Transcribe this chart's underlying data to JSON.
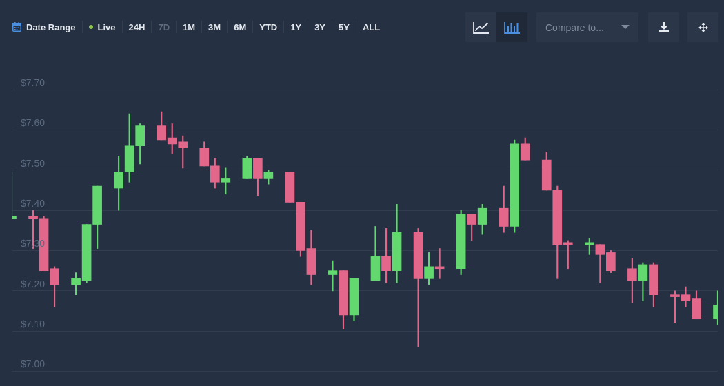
{
  "chart_data": {
    "type": "candlestick",
    "categories": [
      null,
      null,
      null,
      null,
      null,
      null,
      null,
      null,
      null,
      null,
      null,
      null,
      null,
      null,
      null,
      null,
      null,
      null,
      null,
      null,
      null,
      null,
      null,
      null,
      null,
      null,
      null,
      null,
      null,
      null,
      null,
      null,
      null,
      null,
      null,
      null,
      null,
      null,
      null,
      null,
      null,
      null,
      null,
      null,
      null,
      null,
      null,
      null,
      null,
      null,
      null,
      null,
      null,
      null,
      null,
      null,
      null,
      null,
      null,
      null,
      null,
      null,
      null,
      null,
      null,
      null,
      null
    ],
    "ohlc": [
      [
        7.38,
        7.495,
        7.38,
        7.385
      ],
      null,
      [
        7.385,
        7.4,
        7.305,
        7.38
      ],
      [
        7.38,
        7.385,
        7.25,
        7.25
      ],
      [
        7.255,
        7.26,
        7.16,
        7.215
      ],
      null,
      [
        7.215,
        7.245,
        7.19,
        7.23
      ],
      [
        7.225,
        7.365,
        7.22,
        7.365
      ],
      [
        7.365,
        7.46,
        7.305,
        7.46
      ],
      null,
      [
        7.455,
        7.535,
        7.4,
        7.495
      ],
      [
        7.495,
        7.64,
        7.47,
        7.56
      ],
      [
        7.56,
        7.615,
        7.515,
        7.61
      ],
      null,
      [
        7.61,
        7.645,
        7.575,
        7.575
      ],
      [
        7.58,
        7.615,
        7.54,
        7.565
      ],
      [
        7.57,
        7.585,
        7.505,
        7.555
      ],
      null,
      [
        7.555,
        7.57,
        7.51,
        7.51
      ],
      [
        7.51,
        7.53,
        7.455,
        7.47
      ],
      [
        7.47,
        7.505,
        7.44,
        7.48
      ],
      null,
      [
        7.48,
        7.535,
        7.48,
        7.53
      ],
      [
        7.53,
        7.53,
        7.435,
        7.48
      ],
      [
        7.48,
        7.5,
        7.465,
        7.495
      ],
      null,
      [
        7.495,
        7.495,
        7.42,
        7.42
      ],
      [
        7.42,
        7.42,
        7.285,
        7.3
      ],
      [
        7.305,
        7.35,
        7.215,
        7.24
      ],
      null,
      [
        7.24,
        7.275,
        7.2,
        7.25
      ],
      [
        7.25,
        7.25,
        7.105,
        7.14
      ],
      [
        7.14,
        7.23,
        7.125,
        7.23
      ],
      null,
      [
        7.225,
        7.36,
        7.225,
        7.285
      ],
      [
        7.285,
        7.355,
        7.22,
        7.25
      ],
      [
        7.25,
        7.415,
        7.22,
        7.345
      ],
      null,
      [
        7.345,
        7.355,
        7.06,
        7.23
      ],
      [
        7.23,
        7.295,
        7.215,
        7.26
      ],
      [
        7.26,
        7.305,
        7.23,
        7.255
      ],
      null,
      [
        7.255,
        7.4,
        7.24,
        7.39
      ],
      [
        7.39,
        7.39,
        7.325,
        7.365
      ],
      [
        7.365,
        7.415,
        7.34,
        7.405
      ],
      null,
      [
        7.405,
        7.46,
        7.345,
        7.36
      ],
      [
        7.36,
        7.575,
        7.345,
        7.565
      ],
      [
        7.565,
        7.58,
        7.525,
        7.525
      ],
      null,
      [
        7.525,
        7.545,
        7.45,
        7.45
      ],
      [
        7.45,
        7.46,
        7.23,
        7.315
      ],
      [
        7.32,
        7.325,
        7.255,
        7.315
      ],
      null,
      [
        7.315,
        7.33,
        7.29,
        7.32
      ],
      [
        7.315,
        7.315,
        7.22,
        7.29
      ],
      [
        7.295,
        7.3,
        7.245,
        7.25
      ],
      null,
      [
        7.255,
        7.28,
        7.17,
        7.225
      ],
      [
        7.225,
        7.27,
        7.175,
        7.265
      ],
      [
        7.265,
        7.27,
        7.16,
        7.19
      ],
      null,
      [
        7.19,
        7.2,
        7.12,
        7.185
      ],
      [
        7.19,
        7.21,
        7.16,
        7.175
      ],
      [
        7.18,
        7.2,
        7.13,
        7.13
      ],
      null,
      [
        7.13,
        7.2,
        7.115,
        7.165
      ]
    ],
    "colors": [
      "#62d86e",
      null,
      "#e2678b",
      "#e2678b",
      "#e2678b",
      null,
      "#62d86e",
      "#62d86e",
      "#62d86e",
      null,
      "#62d86e",
      "#62d86e",
      "#62d86e",
      null,
      "#e2678b",
      "#e2678b",
      "#e2678b",
      null,
      "#e2678b",
      "#e2678b",
      "#62d86e",
      null,
      "#62d86e",
      "#e2678b",
      "#62d86e",
      null,
      "#e2678b",
      "#e2678b",
      "#e2678b",
      null,
      "#62d86e",
      "#e2678b",
      "#62d86e",
      null,
      "#62d86e",
      "#e2678b",
      "#62d86e",
      null,
      "#e2678b",
      "#62d86e",
      "#e2678b",
      null,
      "#62d86e",
      "#e2678b",
      "#62d86e",
      null,
      "#e2678b",
      "#62d86e",
      "#e2678b",
      null,
      "#e2678b",
      "#e2678b",
      "#e2678b",
      null,
      "#62d86e",
      "#e2678b",
      "#e2678b",
      null,
      "#e2678b",
      "#62d86e",
      "#e2678b",
      null,
      "#e2678b",
      "#e2678b",
      "#e2678b",
      null,
      "#62d86e"
    ],
    "ylim": [
      7.0,
      7.7
    ],
    "yticks": [
      {
        "value": 7.0,
        "label": "$7.00"
      },
      {
        "value": 7.1,
        "label": "$7.10"
      },
      {
        "value": 7.2,
        "label": "$7.20"
      },
      {
        "value": 7.3,
        "label": "$7.30"
      },
      {
        "value": 7.4,
        "label": "$7.40"
      },
      {
        "value": 7.5,
        "label": "$7.50"
      },
      {
        "value": 7.6,
        "label": "$7.60"
      },
      {
        "value": 7.7,
        "label": "$7.70"
      }
    ],
    "grid": "y",
    "tick_labels": "y",
    "annotations": [
      "Date Range",
      "Live",
      "24H",
      "7D",
      "1M",
      "3M",
      "6M",
      "YTD",
      "1Y",
      "3Y",
      "5Y",
      "ALL",
      "Compare to..."
    ]
  }
}
